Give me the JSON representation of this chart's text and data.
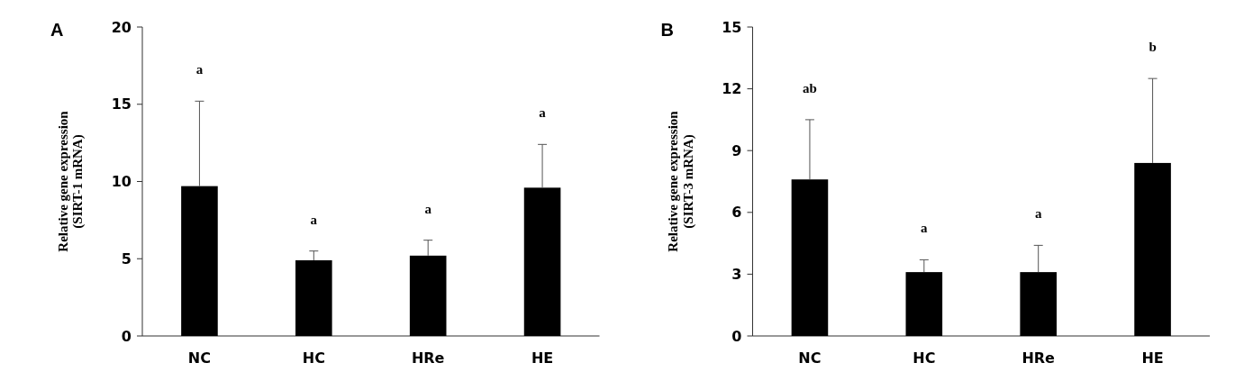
{
  "chart_data": [
    {
      "type": "bar",
      "title": "A",
      "ylabel": "Relative gene expression\n(SIRT-1 mRNA)",
      "categories": [
        "NC",
        "HC",
        "HRe",
        "HE"
      ],
      "values": [
        9.7,
        4.9,
        5.2,
        9.6
      ],
      "errors": [
        [
          9.7,
          15.2
        ],
        [
          4.9,
          5.5
        ],
        [
          5.2,
          6.2
        ],
        [
          9.6,
          12.4
        ]
      ],
      "color": "#000000",
      "ylim": [
        0,
        20
      ],
      "yticks": [
        0,
        5,
        10,
        15,
        20
      ],
      "annotations": [
        "a",
        "a",
        "a",
        "a"
      ]
    },
    {
      "type": "bar",
      "title": "B",
      "ylabel": "Relative gene expression\n(SIRT-3 mRNA)",
      "categories": [
        "NC",
        "HC",
        "HRe",
        "HE"
      ],
      "values": [
        7.6,
        3.1,
        3.1,
        8.4
      ],
      "errors": [
        [
          7.6,
          10.5
        ],
        [
          3.1,
          3.7
        ],
        [
          3.1,
          4.4
        ],
        [
          8.4,
          12.5
        ]
      ],
      "color": "#000000",
      "ylim": [
        0,
        15
      ],
      "yticks": [
        0,
        3,
        6,
        9,
        12,
        15
      ],
      "annotations": [
        "ab",
        "a",
        "a",
        "b"
      ]
    }
  ]
}
